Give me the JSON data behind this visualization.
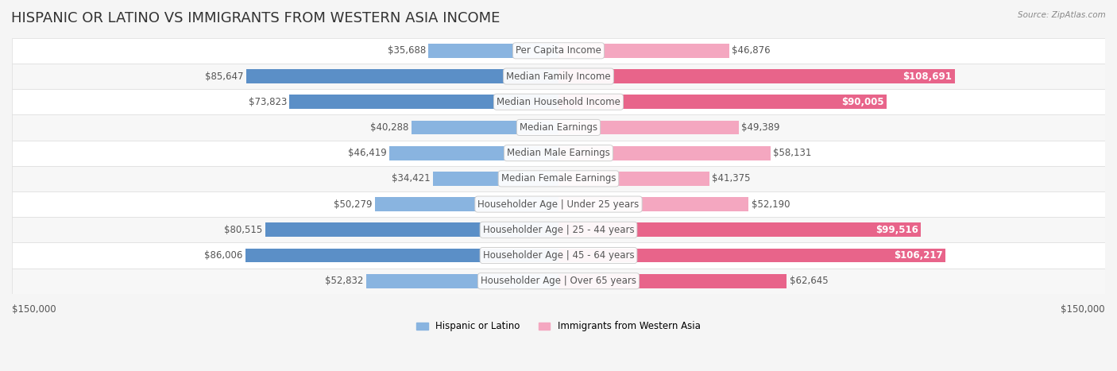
{
  "title": "HISPANIC OR LATINO VS IMMIGRANTS FROM WESTERN ASIA INCOME",
  "source": "Source: ZipAtlas.com",
  "categories": [
    "Per Capita Income",
    "Median Family Income",
    "Median Household Income",
    "Median Earnings",
    "Median Male Earnings",
    "Median Female Earnings",
    "Householder Age | Under 25 years",
    "Householder Age | 25 - 44 years",
    "Householder Age | 45 - 64 years",
    "Householder Age | Over 65 years"
  ],
  "hispanic_values": [
    35688,
    85647,
    73823,
    40288,
    46419,
    34421,
    50279,
    80515,
    86006,
    52832
  ],
  "western_asia_values": [
    46876,
    108691,
    90005,
    49389,
    58131,
    41375,
    52190,
    99516,
    106217,
    62645
  ],
  "hispanic_color": "#89b4e0",
  "hispanic_color_dark": "#5b8fc7",
  "western_asia_color": "#f4a7c0",
  "western_asia_color_dark": "#e8648a",
  "max_val": 150000,
  "label_hispanic": "Hispanic or Latino",
  "label_western": "Immigrants from Western Asia",
  "bg_color": "#f5f5f5",
  "row_bg_color": "#ffffff",
  "row_alt_bg": "#f0f0f0",
  "axis_label_left": "$150,000",
  "axis_label_right": "$150,000",
  "title_fontsize": 13,
  "label_fontsize": 8.5,
  "value_fontsize": 8.5,
  "category_fontsize": 8.5
}
